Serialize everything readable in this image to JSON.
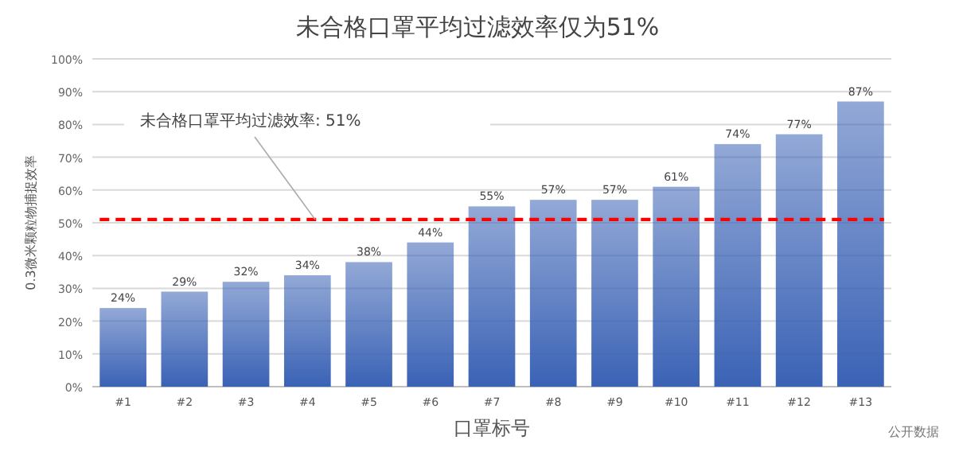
{
  "chart_data": {
    "type": "bar",
    "title": "未合格口罩平均过滤效率仅为51%",
    "xlabel": "口罩标号",
    "ylabel": "0.3微米颗粒物捕捉效率",
    "categories": [
      "#1",
      "#2",
      "#3",
      "#4",
      "#5",
      "#6",
      "#7",
      "#8",
      "#9",
      "#10",
      "#11",
      "#12",
      "#13"
    ],
    "values": [
      24,
      29,
      32,
      34,
      38,
      44,
      55,
      57,
      57,
      61,
      74,
      77,
      87
    ],
    "value_labels": [
      "24%",
      "29%",
      "32%",
      "34%",
      "38%",
      "44%",
      "55%",
      "57%",
      "57%",
      "61%",
      "74%",
      "77%",
      "87%"
    ],
    "color": "#3a62b5",
    "ylim": [
      0,
      100
    ],
    "yticks": [
      {
        "value": 0,
        "label": "0%"
      },
      {
        "value": 10,
        "label": "10%"
      },
      {
        "value": 20,
        "label": "20%"
      },
      {
        "value": 30,
        "label": "30%"
      },
      {
        "value": 40,
        "label": "40%"
      },
      {
        "value": 50,
        "label": "50%"
      },
      {
        "value": 60,
        "label": "60%"
      },
      {
        "value": 70,
        "label": "70%"
      },
      {
        "value": 80,
        "label": "80%"
      },
      {
        "value": 90,
        "label": "90%"
      },
      {
        "value": 100,
        "label": "100%"
      }
    ],
    "grid": "y",
    "ref_lines": [
      {
        "axis": "y",
        "value": 51,
        "label": "未合格口罩平均过滤效率: 51%",
        "color": "#ff0000",
        "line_style": "dashed"
      }
    ],
    "annotations": [
      "公开数据"
    ]
  }
}
